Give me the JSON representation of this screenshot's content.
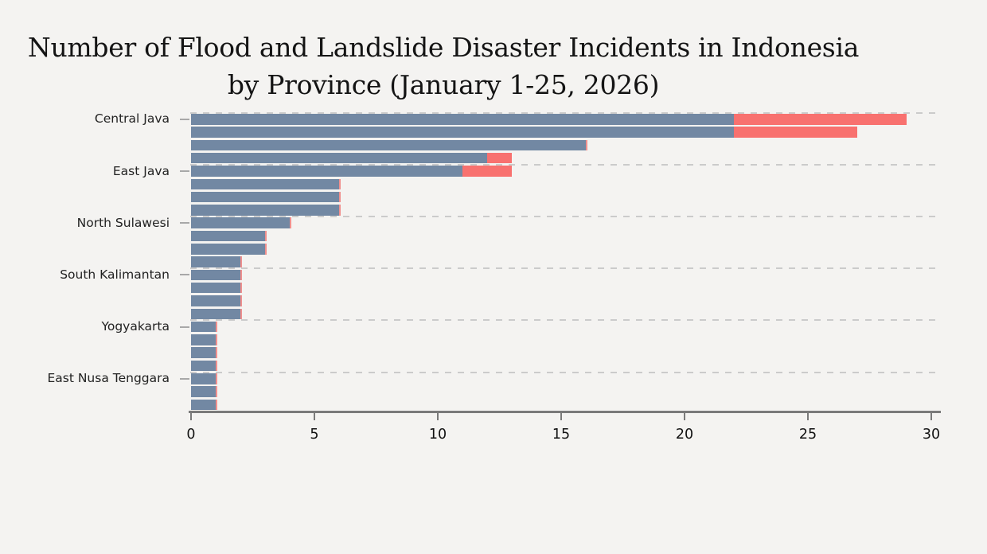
{
  "title": {
    "line1": "Number of Flood and Landslide Disaster Incidents in Indonesia",
    "line2": "by Province (January 1-25, 2026)"
  },
  "chart_data": {
    "type": "bar",
    "orientation": "horizontal",
    "stacked": true,
    "title": "Number of Flood and Landslide Disaster Incidents in Indonesia by Province (January 1-25, 2026)",
    "xlabel": "",
    "ylabel": "",
    "xlim": [
      0,
      30
    ],
    "x_ticks": [
      "0",
      "5",
      "10",
      "15",
      "20",
      "25",
      "30"
    ],
    "x_tick_values": [
      0,
      5,
      10,
      15,
      20,
      25,
      30
    ],
    "grid": "dashed horizontal separator lines at each labeled row, every 4 bars",
    "legend": "none shown",
    "visible_y_tick_labels": [
      "Central Java",
      "East Java",
      "North Sulawesi",
      "South Kalimantan",
      "Yogyakarta",
      "East Nusa Tenggara"
    ],
    "series_info": [
      {
        "name": "flood",
        "color": "#7288a3"
      },
      {
        "name": "landslide",
        "color": "#f8716f"
      }
    ],
    "bars": [
      {
        "label": "Central Java",
        "flood": 22,
        "landslide": 7,
        "total": 29
      },
      {
        "label": "",
        "flood": 22,
        "landslide": 5,
        "total": 27
      },
      {
        "label": "",
        "flood": 16,
        "landslide": 0,
        "total": 16
      },
      {
        "label": "",
        "flood": 12,
        "landslide": 1,
        "total": 13
      },
      {
        "label": "East Java",
        "flood": 11,
        "landslide": 2,
        "total": 13
      },
      {
        "label": "",
        "flood": 6,
        "landslide": 0,
        "total": 6
      },
      {
        "label": "",
        "flood": 6,
        "landslide": 0,
        "total": 6
      },
      {
        "label": "",
        "flood": 6,
        "landslide": 0,
        "total": 6
      },
      {
        "label": "North Sulawesi",
        "flood": 4,
        "landslide": 0,
        "total": 4
      },
      {
        "label": "",
        "flood": 3,
        "landslide": 0,
        "total": 3
      },
      {
        "label": "",
        "flood": 3,
        "landslide": 0,
        "total": 3
      },
      {
        "label": "",
        "flood": 2,
        "landslide": 0,
        "total": 2
      },
      {
        "label": "South Kalimantan",
        "flood": 2,
        "landslide": 0,
        "total": 2
      },
      {
        "label": "",
        "flood": 2,
        "landslide": 0,
        "total": 2
      },
      {
        "label": "",
        "flood": 2,
        "landslide": 0,
        "total": 2
      },
      {
        "label": "",
        "flood": 2,
        "landslide": 0,
        "total": 2
      },
      {
        "label": "Yogyakarta",
        "flood": 1,
        "landslide": 0,
        "total": 1
      },
      {
        "label": "",
        "flood": 1,
        "landslide": 0,
        "total": 1
      },
      {
        "label": "",
        "flood": 1,
        "landslide": 0,
        "total": 1
      },
      {
        "label": "",
        "flood": 1,
        "landslide": 0,
        "total": 1
      },
      {
        "label": "East Nusa Tenggara",
        "flood": 1,
        "landslide": 0,
        "total": 1
      },
      {
        "label": "",
        "flood": 1,
        "landslide": 0,
        "total": 1
      },
      {
        "label": "",
        "flood": 1,
        "landslide": 0,
        "total": 1
      }
    ],
    "colors": {
      "background": "#f4f3f1",
      "flood_bar": "#7288a3",
      "landslide_bar": "#f8716f",
      "gridline": "#cbcbcb",
      "axis": "#7a7a7a",
      "text": "#141414"
    }
  }
}
